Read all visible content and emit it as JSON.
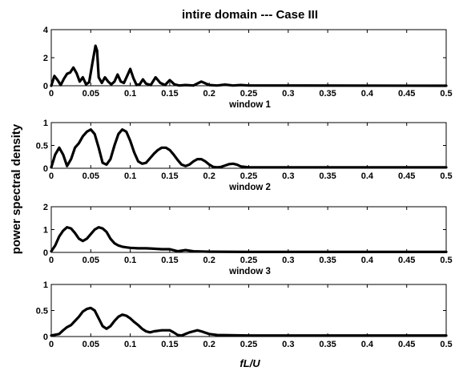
{
  "chart_data": {
    "title": "intire domain --- Case III",
    "ylabel": "power spectral density",
    "xlabel": "fL/U",
    "xlim": [
      0,
      0.5
    ],
    "x_ticks": [
      "0",
      "0.05",
      "0.1",
      "0.15",
      "0.2",
      "0.25",
      "0.3",
      "0.35",
      "0.4",
      "0.45",
      "0.5"
    ],
    "line_color": "#000000",
    "panels": [
      {
        "type": "line",
        "label": "window 1",
        "ylim": [
          0,
          4
        ],
        "y_ticks": [
          "0",
          "2",
          "4"
        ],
        "x": [
          0,
          0.004,
          0.008,
          0.012,
          0.016,
          0.02,
          0.024,
          0.028,
          0.032,
          0.036,
          0.04,
          0.044,
          0.048,
          0.052,
          0.056,
          0.058,
          0.06,
          0.064,
          0.068,
          0.072,
          0.076,
          0.08,
          0.084,
          0.088,
          0.092,
          0.096,
          0.1,
          0.104,
          0.108,
          0.112,
          0.116,
          0.12,
          0.126,
          0.132,
          0.138,
          0.144,
          0.15,
          0.156,
          0.162,
          0.17,
          0.18,
          0.19,
          0.2,
          0.21,
          0.22,
          0.23,
          0.24,
          0.25,
          0.5
        ],
        "y": [
          0,
          0.7,
          0.4,
          0.05,
          0.5,
          0.85,
          0.95,
          1.3,
          0.9,
          0.3,
          0.6,
          0.1,
          0.25,
          1.6,
          2.85,
          2.5,
          0.6,
          0.2,
          0.6,
          0.3,
          0.1,
          0.3,
          0.8,
          0.3,
          0.2,
          0.7,
          1.2,
          0.55,
          0.05,
          0.1,
          0.45,
          0.15,
          0.05,
          0.6,
          0.2,
          0.05,
          0.4,
          0.1,
          0.02,
          0.05,
          0.02,
          0.3,
          0.05,
          0.02,
          0.08,
          0.02,
          0.05,
          0.02,
          0
        ]
      },
      {
        "type": "line",
        "label": "window 2",
        "ylim": [
          0,
          1
        ],
        "y_ticks": [
          "0",
          "0.5",
          "1"
        ],
        "x": [
          0,
          0.005,
          0.01,
          0.015,
          0.02,
          0.025,
          0.03,
          0.035,
          0.04,
          0.045,
          0.05,
          0.055,
          0.06,
          0.065,
          0.07,
          0.075,
          0.08,
          0.085,
          0.09,
          0.095,
          0.1,
          0.105,
          0.11,
          0.115,
          0.12,
          0.125,
          0.13,
          0.135,
          0.14,
          0.145,
          0.15,
          0.155,
          0.16,
          0.165,
          0.17,
          0.175,
          0.18,
          0.185,
          0.19,
          0.195,
          0.2,
          0.205,
          0.21,
          0.215,
          0.22,
          0.225,
          0.23,
          0.235,
          0.24,
          0.25,
          0.5
        ],
        "y": [
          0.02,
          0.3,
          0.45,
          0.3,
          0.05,
          0.2,
          0.45,
          0.55,
          0.7,
          0.8,
          0.85,
          0.75,
          0.45,
          0.12,
          0.08,
          0.2,
          0.5,
          0.75,
          0.85,
          0.8,
          0.6,
          0.35,
          0.15,
          0.1,
          0.12,
          0.22,
          0.32,
          0.4,
          0.45,
          0.45,
          0.4,
          0.3,
          0.18,
          0.08,
          0.05,
          0.08,
          0.15,
          0.2,
          0.2,
          0.15,
          0.08,
          0.03,
          0.02,
          0.03,
          0.06,
          0.09,
          0.1,
          0.08,
          0.04,
          0.02,
          0.02
        ]
      },
      {
        "type": "line",
        "label": "window 3",
        "ylim": [
          0,
          2
        ],
        "y_ticks": [
          "0",
          "1",
          "2"
        ],
        "x": [
          0,
          0.005,
          0.01,
          0.015,
          0.02,
          0.025,
          0.03,
          0.035,
          0.04,
          0.045,
          0.05,
          0.055,
          0.06,
          0.065,
          0.07,
          0.075,
          0.08,
          0.085,
          0.09,
          0.095,
          0.1,
          0.11,
          0.12,
          0.13,
          0.14,
          0.15,
          0.16,
          0.17,
          0.18,
          0.2,
          0.25,
          0.5
        ],
        "y": [
          0.05,
          0.3,
          0.7,
          0.95,
          1.1,
          1.05,
          0.85,
          0.6,
          0.5,
          0.6,
          0.8,
          1.0,
          1.1,
          1.05,
          0.9,
          0.6,
          0.4,
          0.3,
          0.25,
          0.22,
          0.2,
          0.18,
          0.18,
          0.16,
          0.14,
          0.14,
          0.05,
          0.1,
          0.05,
          0.03,
          0.02,
          0.02
        ]
      },
      {
        "type": "line",
        "label": "",
        "ylim": [
          0,
          1
        ],
        "y_ticks": [
          "0",
          "0.5",
          "1"
        ],
        "x": [
          0,
          0.01,
          0.015,
          0.02,
          0.025,
          0.03,
          0.035,
          0.04,
          0.045,
          0.05,
          0.055,
          0.06,
          0.065,
          0.07,
          0.075,
          0.08,
          0.085,
          0.09,
          0.095,
          0.1,
          0.105,
          0.11,
          0.115,
          0.12,
          0.125,
          0.13,
          0.14,
          0.15,
          0.155,
          0.16,
          0.165,
          0.17,
          0.175,
          0.18,
          0.185,
          0.19,
          0.2,
          0.21,
          0.25,
          0.5
        ],
        "y": [
          0.02,
          0.05,
          0.12,
          0.18,
          0.22,
          0.3,
          0.38,
          0.48,
          0.53,
          0.55,
          0.5,
          0.35,
          0.2,
          0.15,
          0.2,
          0.3,
          0.38,
          0.42,
          0.4,
          0.35,
          0.28,
          0.22,
          0.15,
          0.1,
          0.08,
          0.1,
          0.12,
          0.12,
          0.08,
          0.03,
          0.02,
          0.05,
          0.08,
          0.1,
          0.12,
          0.1,
          0.05,
          0.03,
          0.02,
          0.02
        ]
      }
    ]
  }
}
